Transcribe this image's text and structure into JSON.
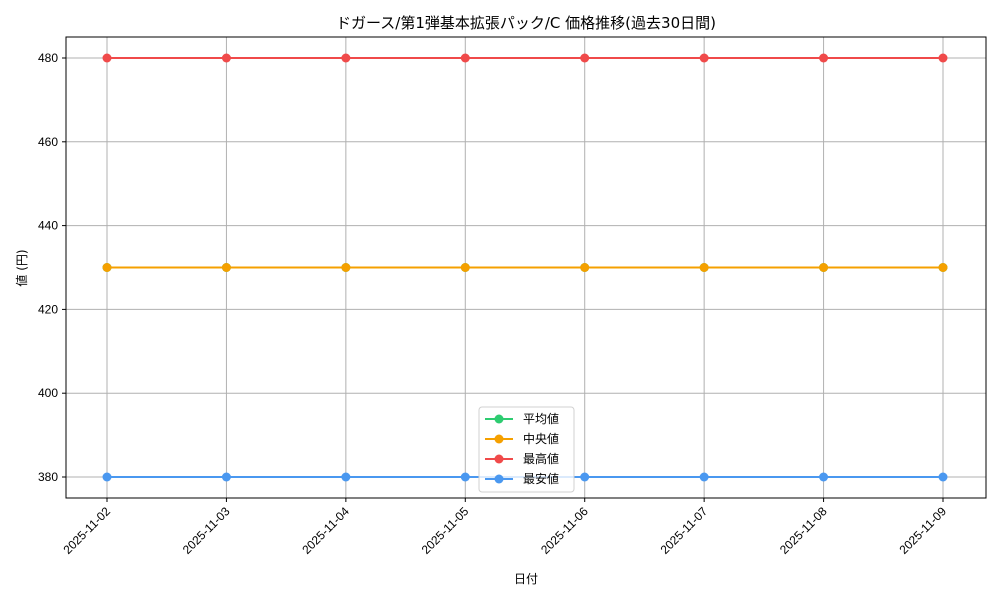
{
  "chart_data": {
    "type": "line",
    "title": "ドガース/第1弾基本拡張パック/C 価格推移(過去30日間)",
    "xlabel": "日付",
    "ylabel": "値 (円)",
    "categories": [
      "2025-11-02",
      "2025-11-03",
      "2025-11-04",
      "2025-11-05",
      "2025-11-06",
      "2025-11-07",
      "2025-11-08",
      "2025-11-09"
    ],
    "series": [
      {
        "name": "平均値",
        "color": "#2ecc71",
        "values": [
          430,
          430,
          430,
          430,
          430,
          430,
          430,
          430
        ]
      },
      {
        "name": "中央値",
        "color": "#f5a000",
        "values": [
          430,
          430,
          430,
          430,
          430,
          430,
          430,
          430
        ]
      },
      {
        "name": "最高値",
        "color": "#f04a4a",
        "values": [
          480,
          480,
          480,
          480,
          480,
          480,
          480,
          480
        ]
      },
      {
        "name": "最安値",
        "color": "#4a98f0",
        "values": [
          380,
          380,
          380,
          380,
          380,
          380,
          380,
          380
        ]
      }
    ],
    "yticks": [
      380,
      400,
      420,
      440,
      460,
      480
    ],
    "ylim": [
      375,
      485
    ],
    "grid": true,
    "legend_position": "lower center",
    "x_tick_rotation": 45
  }
}
